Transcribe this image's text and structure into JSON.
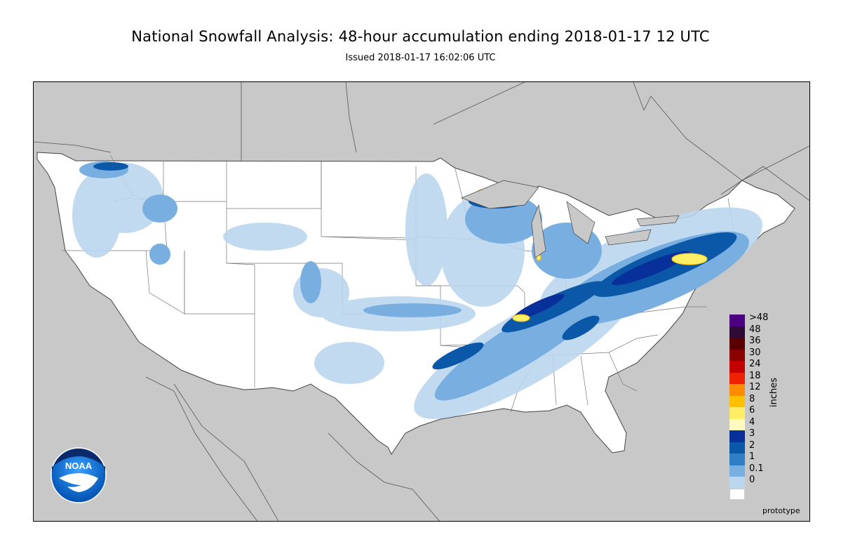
{
  "header": {
    "title": "National Snowfall Analysis: 48-hour accumulation ending 2018-01-17 12 UTC",
    "subtitle": "Issued 2018-01-17 16:02:06 UTC"
  },
  "legend": {
    "unit_label": "inches",
    "levels": [
      {
        "label": ">48",
        "color": "#4b0082"
      },
      {
        "label": "48",
        "color": "#2e0a36"
      },
      {
        "label": "36",
        "color": "#5a0000"
      },
      {
        "label": "30",
        "color": "#8b0000"
      },
      {
        "label": "24",
        "color": "#c40000"
      },
      {
        "label": "18",
        "color": "#ee2200"
      },
      {
        "label": "12",
        "color": "#ff8c00"
      },
      {
        "label": "8",
        "color": "#ffc000"
      },
      {
        "label": "6",
        "color": "#ffee66"
      },
      {
        "label": "4",
        "color": "#fffac0"
      },
      {
        "label": "3",
        "color": "#08309a"
      },
      {
        "label": "2",
        "color": "#0c58a8"
      },
      {
        "label": "1",
        "color": "#2f7fc4"
      },
      {
        "label": "0.1",
        "color": "#78afe0"
      },
      {
        "label": "0",
        "color": "#bcd6ee"
      }
    ],
    "bottom_color": "#ffffff"
  },
  "footer": {
    "prototype_label": "prototype",
    "logo_text": "NOAA"
  },
  "colors": {
    "background": "#c8c8c8",
    "land": "#ffffff",
    "border": "#555555"
  }
}
